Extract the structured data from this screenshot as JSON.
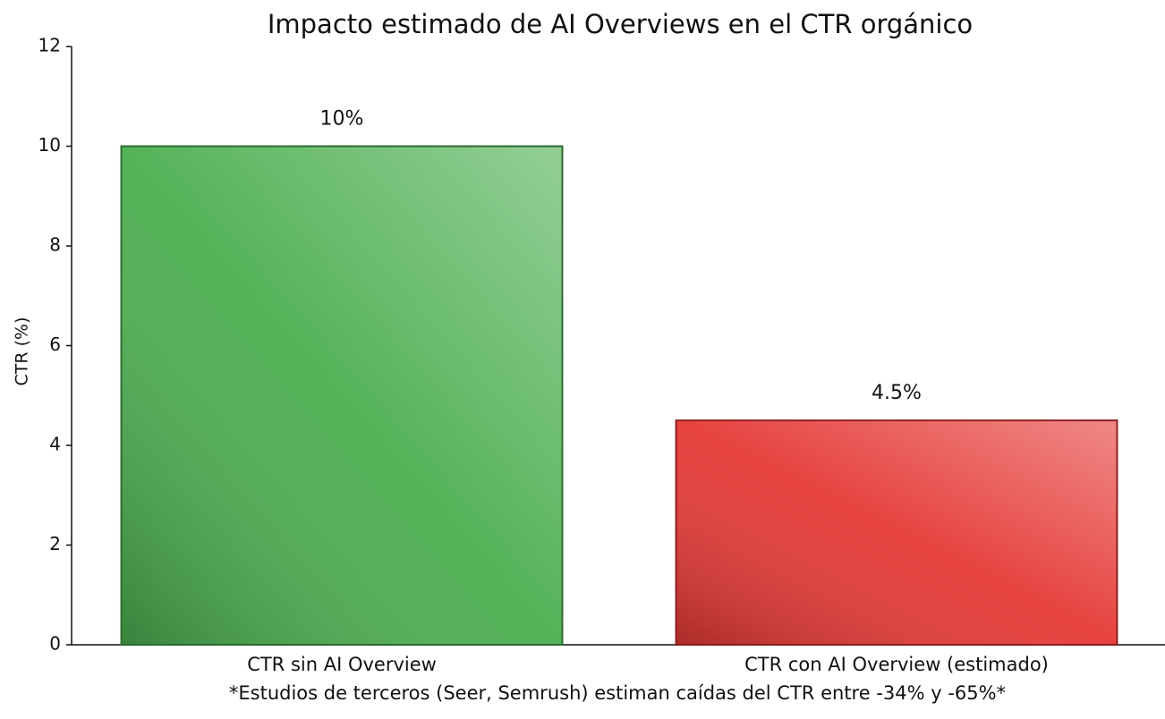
{
  "chart_data": {
    "type": "bar",
    "title": "Impacto estimado de AI Overviews en el CTR orgánico",
    "y_label": "CTR (%)",
    "footnote": "*Estudios de terceros (Seer, Semrush) estiman caídas del CTR entre -34% y -65%*",
    "categories": [
      "CTR sin AI Overview",
      "CTR con AI Overview (estimado)"
    ],
    "values": [
      10,
      4.5
    ],
    "value_labels": [
      "10%",
      "4.5%"
    ],
    "colors": [
      "#4caf50",
      "#e53935"
    ],
    "edge_colors": [
      "#2e6b30",
      "#8e1f1f"
    ],
    "ylim": [
      0,
      12
    ],
    "yticks": [
      0,
      2,
      4,
      6,
      8,
      10,
      12
    ],
    "grid": false
  }
}
